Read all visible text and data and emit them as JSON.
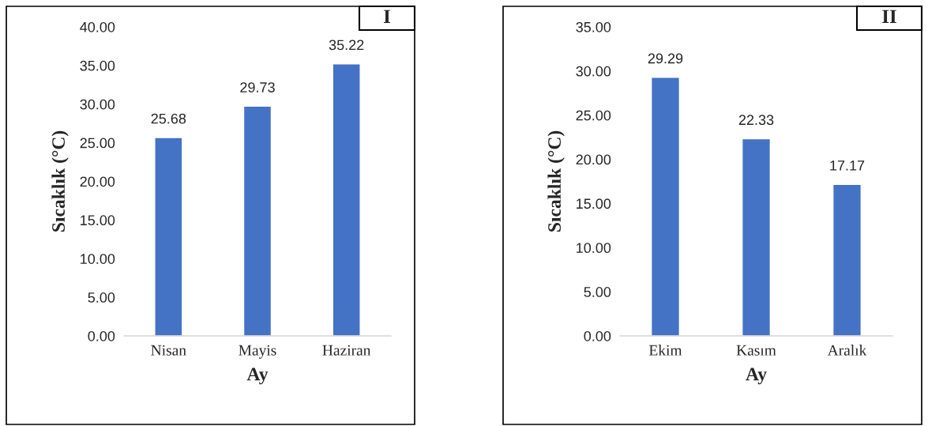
{
  "chart_data": [
    {
      "type": "bar",
      "title": "I",
      "xlabel": "Ay",
      "ylabel": "Sıcaklık (°C)",
      "categories": [
        "Nisan",
        "Mayis",
        "Haziran"
      ],
      "values": [
        25.68,
        29.73,
        35.22
      ],
      "color": "#4472c4",
      "ylim": [
        0,
        40
      ],
      "yticks": [
        {
          "value": 0,
          "label": "0.00"
        },
        {
          "value": 5,
          "label": "5.00"
        },
        {
          "value": 10,
          "label": "10.00"
        },
        {
          "value": 15,
          "label": "15.00"
        },
        {
          "value": 20,
          "label": "20.00"
        },
        {
          "value": 25,
          "label": "25.00"
        },
        {
          "value": 30,
          "label": "30.00"
        },
        {
          "value": 35,
          "label": "35.00"
        },
        {
          "value": 40,
          "label": "40.00"
        }
      ],
      "data_labels": true,
      "grid": false,
      "legend": false
    },
    {
      "type": "bar",
      "title": "II",
      "xlabel": "Ay",
      "ylabel": "Sıcaklık (°C)",
      "categories": [
        "Ekim",
        "Kasım",
        "Aralık"
      ],
      "values": [
        29.29,
        22.33,
        17.17
      ],
      "color": "#4472c4",
      "ylim": [
        0,
        35
      ],
      "yticks": [
        {
          "value": 0,
          "label": "0.00"
        },
        {
          "value": 5,
          "label": "5.00"
        },
        {
          "value": 10,
          "label": "10.00"
        },
        {
          "value": 15,
          "label": "15.00"
        },
        {
          "value": 20,
          "label": "20.00"
        },
        {
          "value": 25,
          "label": "25.00"
        },
        {
          "value": 30,
          "label": "30.00"
        },
        {
          "value": 35,
          "label": "35.00"
        }
      ],
      "data_labels": true,
      "grid": false,
      "legend": false
    }
  ]
}
